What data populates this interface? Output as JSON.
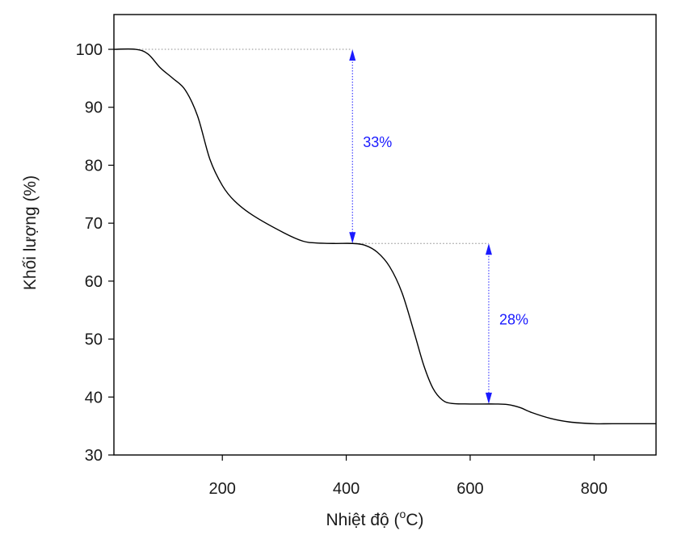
{
  "chart_data": {
    "type": "line",
    "title": "",
    "xlabel": "Nhiệt độ (",
    "xlabel_sup": "o",
    "xlabel_end": "C)",
    "ylabel": "Khối lượng (%)",
    "xlim": [
      25,
      900
    ],
    "ylim": [
      30,
      106
    ],
    "x_ticks": [
      200,
      400,
      600,
      800
    ],
    "y_ticks": [
      30,
      40,
      50,
      60,
      70,
      80,
      90,
      100
    ],
    "grid": false,
    "series": [
      {
        "name": "",
        "color": "#000000",
        "points": [
          [
            25,
            100
          ],
          [
            60,
            100
          ],
          [
            80,
            99.2
          ],
          [
            100,
            96.8
          ],
          [
            120,
            95
          ],
          [
            140,
            93
          ],
          [
            160,
            88.5
          ],
          [
            180,
            81
          ],
          [
            200,
            76.5
          ],
          [
            220,
            73.8
          ],
          [
            250,
            71.3
          ],
          [
            300,
            68.3
          ],
          [
            330,
            66.9
          ],
          [
            350,
            66.6
          ],
          [
            380,
            66.5
          ],
          [
            410,
            66.5
          ],
          [
            430,
            66.2
          ],
          [
            450,
            65
          ],
          [
            470,
            62.5
          ],
          [
            490,
            58
          ],
          [
            510,
            51
          ],
          [
            525,
            45.5
          ],
          [
            540,
            41.5
          ],
          [
            555,
            39.5
          ],
          [
            570,
            38.9
          ],
          [
            600,
            38.8
          ],
          [
            640,
            38.8
          ],
          [
            660,
            38.7
          ],
          [
            680,
            38.2
          ],
          [
            700,
            37.3
          ],
          [
            730,
            36.3
          ],
          [
            760,
            35.7
          ],
          [
            800,
            35.4
          ],
          [
            830,
            35.4
          ],
          [
            900,
            35.4
          ]
        ]
      }
    ],
    "annotations": [
      {
        "label": "33%",
        "x": 410,
        "y_top": 100,
        "y_bottom": 66.5,
        "ref_from_x": 60,
        "color": "#1a1aff"
      },
      {
        "label": "28%",
        "x": 630,
        "y_top": 66.5,
        "y_bottom": 38.8,
        "ref_from_x": 410,
        "color": "#1a1aff"
      }
    ]
  }
}
